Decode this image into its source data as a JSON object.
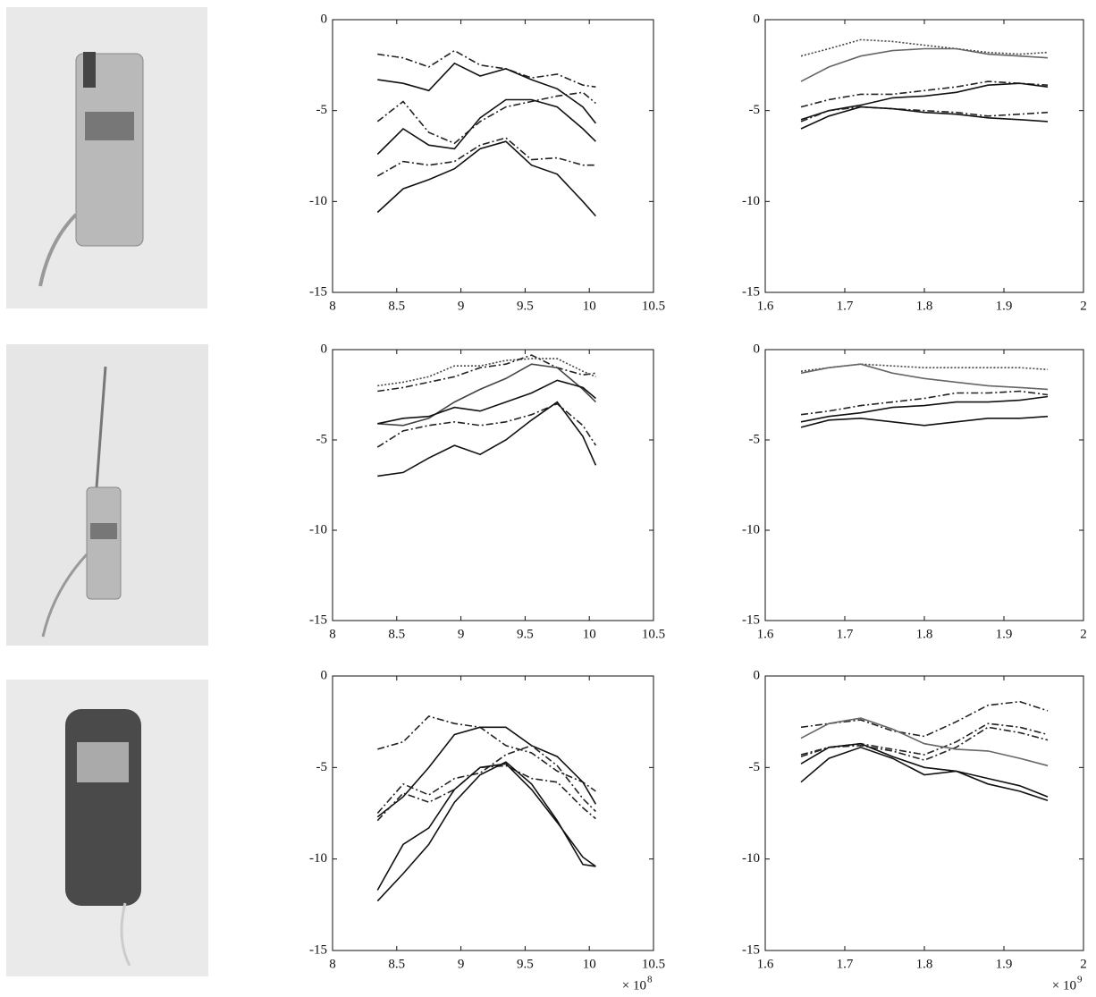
{
  "chart_data": [
    {
      "type": "line",
      "x": [
        8.35,
        8.55,
        8.75,
        8.95,
        9.15,
        9.35,
        9.55,
        9.75,
        9.95,
        10.05
      ],
      "xlim": [
        8,
        10.5
      ],
      "xticks": [
        8,
        8.5,
        9,
        9.5,
        10,
        10.5
      ],
      "ylim": [
        -15,
        0
      ],
      "yticks": [
        0,
        -5,
        -10,
        -15
      ],
      "series": [
        {
          "color": "#222",
          "style": "dashdot",
          "values": [
            -1.9,
            -2.1,
            -2.6,
            -1.7,
            -2.5,
            -2.7,
            -3.2,
            -3.0,
            -3.6,
            -3.7
          ]
        },
        {
          "color": "#111",
          "style": "solid",
          "values": [
            -3.3,
            -3.5,
            -3.9,
            -2.4,
            -3.1,
            -2.7,
            -3.3,
            -3.8,
            -4.8,
            -5.7
          ]
        },
        {
          "color": "#222",
          "style": "dashdot",
          "values": [
            -5.6,
            -4.5,
            -6.2,
            -6.8,
            -5.6,
            -4.8,
            -4.5,
            -4.2,
            -4.0,
            -4.6
          ]
        },
        {
          "color": "#111",
          "style": "solid",
          "values": [
            -7.4,
            -6.0,
            -6.9,
            -7.1,
            -5.4,
            -4.4,
            -4.4,
            -4.8,
            -6.0,
            -6.7
          ]
        },
        {
          "color": "#222",
          "style": "dashdot",
          "values": [
            -8.6,
            -7.8,
            -8.0,
            -7.8,
            -6.9,
            -6.5,
            -7.7,
            -7.6,
            -8.0,
            -8.0
          ]
        },
        {
          "color": "#111",
          "style": "solid",
          "values": [
            -10.6,
            -9.3,
            -8.8,
            -8.2,
            -7.1,
            -6.7,
            -8.0,
            -8.5,
            -10.0,
            -10.8
          ]
        }
      ]
    },
    {
      "type": "line",
      "x": [
        1.645,
        1.68,
        1.72,
        1.76,
        1.8,
        1.84,
        1.88,
        1.92,
        1.955
      ],
      "xlim": [
        1.6,
        2
      ],
      "xticks": [
        1.6,
        1.7,
        1.8,
        1.9,
        2
      ],
      "ylim": [
        -15,
        0
      ],
      "yticks": [
        0,
        -5,
        -10,
        -15
      ],
      "series": [
        {
          "color": "#444",
          "style": "dotted",
          "values": [
            -2.0,
            -1.6,
            -1.1,
            -1.2,
            -1.4,
            -1.6,
            -1.8,
            -1.9,
            -1.8
          ]
        },
        {
          "color": "#666",
          "style": "solid",
          "values": [
            -3.4,
            -2.6,
            -2.0,
            -1.7,
            -1.6,
            -1.6,
            -1.9,
            -2.0,
            -2.1
          ]
        },
        {
          "color": "#222",
          "style": "dashdot",
          "values": [
            -4.8,
            -4.4,
            -4.1,
            -4.1,
            -3.9,
            -3.7,
            -3.4,
            -3.5,
            -3.6
          ]
        },
        {
          "color": "#111",
          "style": "solid",
          "values": [
            -5.5,
            -5.0,
            -4.7,
            -4.3,
            -4.2,
            -4.0,
            -3.6,
            -3.5,
            -3.7
          ]
        },
        {
          "color": "#222",
          "style": "dashdot",
          "values": [
            -5.6,
            -5.0,
            -4.8,
            -4.9,
            -5.0,
            -5.1,
            -5.3,
            -5.2,
            -5.1
          ]
        },
        {
          "color": "#111",
          "style": "solid",
          "values": [
            -6.0,
            -5.3,
            -4.8,
            -4.9,
            -5.1,
            -5.2,
            -5.4,
            -5.5,
            -5.6
          ]
        }
      ]
    },
    {
      "type": "line",
      "x": [
        8.35,
        8.55,
        8.75,
        8.95,
        9.15,
        9.35,
        9.55,
        9.75,
        9.95,
        10.05
      ],
      "xlim": [
        8,
        10.5
      ],
      "xticks": [
        8,
        8.5,
        9,
        9.5,
        10,
        10.5
      ],
      "ylim": [
        -15,
        0
      ],
      "yticks": [
        0,
        -5,
        -10,
        -15
      ],
      "series": [
        {
          "color": "#444",
          "style": "dotted",
          "values": [
            -2.0,
            -1.8,
            -1.5,
            -0.9,
            -0.9,
            -0.6,
            -0.5,
            -0.5,
            -1.2,
            -1.5
          ]
        },
        {
          "color": "#222",
          "style": "dashdot",
          "values": [
            -2.3,
            -2.1,
            -1.8,
            -1.5,
            -1.0,
            -0.8,
            -0.3,
            -1.0,
            -1.4,
            -1.3
          ]
        },
        {
          "color": "#444",
          "style": "solid",
          "values": [
            -4.1,
            -4.2,
            -3.8,
            -2.9,
            -2.2,
            -1.6,
            -0.8,
            -1.0,
            -2.2,
            -2.9
          ]
        },
        {
          "color": "#111",
          "style": "solid",
          "values": [
            -4.1,
            -3.8,
            -3.7,
            -3.2,
            -3.4,
            -2.9,
            -2.4,
            -1.7,
            -2.1,
            -2.7
          ]
        },
        {
          "color": "#222",
          "style": "dashdot",
          "values": [
            -5.4,
            -4.5,
            -4.2,
            -4.0,
            -4.2,
            -4.0,
            -3.6,
            -3.0,
            -4.2,
            -5.3
          ]
        },
        {
          "color": "#111",
          "style": "solid",
          "values": [
            -7.0,
            -6.8,
            -6.0,
            -5.3,
            -5.8,
            -5.0,
            -3.9,
            -2.9,
            -4.8,
            -6.4
          ]
        }
      ]
    },
    {
      "type": "line",
      "x": [
        1.645,
        1.68,
        1.72,
        1.76,
        1.8,
        1.84,
        1.88,
        1.92,
        1.955
      ],
      "xlim": [
        1.6,
        2
      ],
      "xticks": [
        1.6,
        1.7,
        1.8,
        1.9,
        2
      ],
      "ylim": [
        -15,
        0
      ],
      "yticks": [
        0,
        -5,
        -10,
        -15
      ],
      "series": [
        {
          "color": "#444",
          "style": "dotted",
          "values": [
            -1.2,
            -1.0,
            -0.8,
            -0.9,
            -1.0,
            -1.0,
            -1.0,
            -1.0,
            -1.1
          ]
        },
        {
          "color": "#666",
          "style": "solid",
          "values": [
            -1.3,
            -1.0,
            -0.8,
            -1.3,
            -1.6,
            -1.8,
            -2.0,
            -2.1,
            -2.2
          ]
        },
        {
          "color": "#222",
          "style": "dashdot",
          "values": [
            -3.6,
            -3.4,
            -3.1,
            -2.9,
            -2.7,
            -2.4,
            -2.4,
            -2.3,
            -2.5
          ]
        },
        {
          "color": "#111",
          "style": "solid",
          "values": [
            -4.0,
            -3.7,
            -3.5,
            -3.2,
            -3.1,
            -2.9,
            -2.9,
            -2.8,
            -2.6
          ]
        },
        {
          "color": "#111",
          "style": "solid",
          "values": [
            -4.3,
            -3.9,
            -3.8,
            -4.0,
            -4.2,
            -4.0,
            -3.8,
            -3.8,
            -3.7
          ]
        }
      ]
    },
    {
      "type": "line",
      "x": [
        8.35,
        8.55,
        8.75,
        8.95,
        9.15,
        9.35,
        9.55,
        9.75,
        9.95,
        10.05
      ],
      "xlim": [
        8,
        10.5
      ],
      "xticks": [
        8,
        8.5,
        9,
        9.5,
        10,
        10.5
      ],
      "ylim": [
        -15,
        0
      ],
      "yticks": [
        0,
        -5,
        -10,
        -15
      ],
      "x_multiplier": {
        "base": "× 10",
        "exponent": "8"
      },
      "series": [
        {
          "color": "#222",
          "style": "dashdot",
          "values": [
            -4.0,
            -3.6,
            -2.2,
            -2.6,
            -2.8,
            -3.8,
            -4.2,
            -5.2,
            -5.8,
            -6.3
          ]
        },
        {
          "color": "#111",
          "style": "solid",
          "values": [
            -7.7,
            -6.6,
            -5.0,
            -3.2,
            -2.8,
            -2.8,
            -3.8,
            -4.4,
            -5.8,
            -7.0
          ]
        },
        {
          "color": "#222",
          "style": "dashdot",
          "values": [
            -7.5,
            -5.9,
            -6.5,
            -5.6,
            -5.3,
            -4.3,
            -3.8,
            -4.9,
            -6.7,
            -7.4
          ]
        },
        {
          "color": "#222",
          "style": "dashdot",
          "values": [
            -7.9,
            -6.4,
            -6.9,
            -6.2,
            -5.0,
            -4.9,
            -5.6,
            -5.8,
            -7.2,
            -7.8
          ]
        },
        {
          "color": "#111",
          "style": "solid",
          "values": [
            -11.7,
            -9.2,
            -8.3,
            -6.2,
            -5.0,
            -4.8,
            -6.2,
            -8.0,
            -9.9,
            -10.4
          ]
        },
        {
          "color": "#111",
          "style": "solid",
          "values": [
            -12.3,
            -10.8,
            -9.2,
            -6.9,
            -5.4,
            -4.7,
            -5.9,
            -7.9,
            -10.3,
            -10.4
          ]
        }
      ]
    },
    {
      "type": "line",
      "x": [
        1.645,
        1.68,
        1.72,
        1.76,
        1.8,
        1.84,
        1.88,
        1.92,
        1.955
      ],
      "xlim": [
        1.6,
        2
      ],
      "xticks": [
        1.6,
        1.7,
        1.8,
        1.9,
        2
      ],
      "ylim": [
        -15,
        0
      ],
      "yticks": [
        0,
        -5,
        -10,
        -15
      ],
      "x_multiplier": {
        "base": "× 10",
        "exponent": "9"
      },
      "series": [
        {
          "color": "#222",
          "style": "dashdot",
          "values": [
            -2.8,
            -2.6,
            -2.4,
            -3.0,
            -3.3,
            -2.5,
            -1.6,
            -1.4,
            -1.9
          ]
        },
        {
          "color": "#222",
          "style": "dashdot",
          "values": [
            -4.3,
            -3.9,
            -3.7,
            -4.0,
            -4.3,
            -3.6,
            -2.6,
            -2.8,
            -3.2
          ]
        },
        {
          "color": "#222",
          "style": "dashdot",
          "values": [
            -4.4,
            -3.9,
            -3.8,
            -4.1,
            -4.6,
            -3.9,
            -2.8,
            -3.1,
            -3.5
          ]
        },
        {
          "color": "#666",
          "style": "solid",
          "values": [
            -3.4,
            -2.6,
            -2.3,
            -2.9,
            -3.7,
            -4.0,
            -4.1,
            -4.5,
            -4.9
          ]
        },
        {
          "color": "#111",
          "style": "solid",
          "values": [
            -4.8,
            -3.9,
            -3.7,
            -4.4,
            -5.0,
            -5.2,
            -5.6,
            -6.0,
            -6.6
          ]
        },
        {
          "color": "#111",
          "style": "solid",
          "values": [
            -5.8,
            -4.5,
            -3.9,
            -4.5,
            -5.4,
            -5.2,
            -5.9,
            -6.3,
            -6.8
          ]
        }
      ]
    }
  ]
}
